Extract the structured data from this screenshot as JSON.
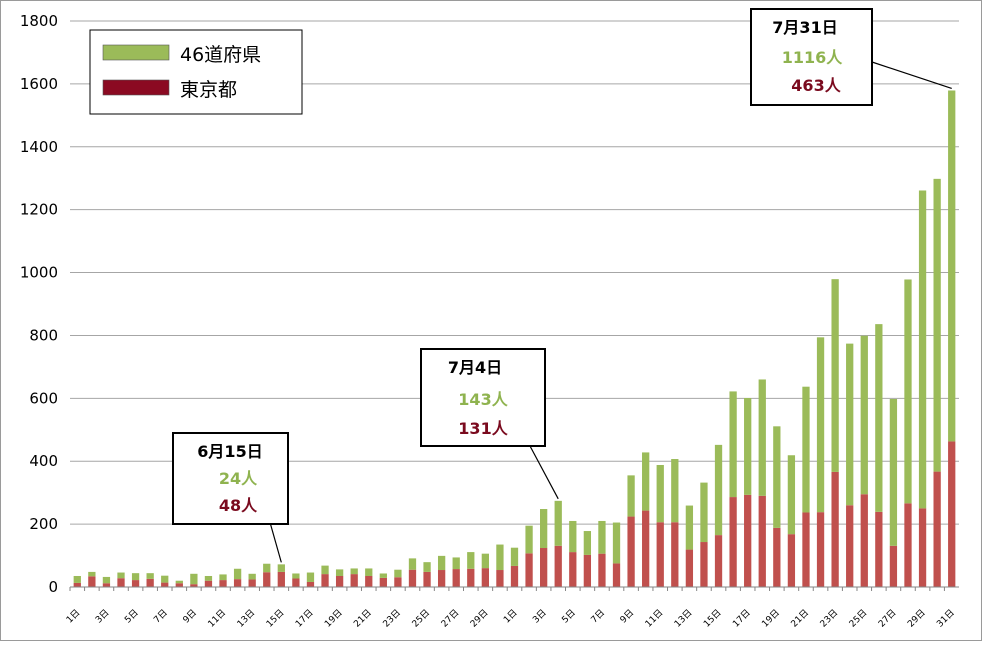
{
  "chart_data": {
    "type": "bar",
    "stacked": true,
    "ylim": [
      0,
      1800
    ],
    "yticks": [
      0,
      200,
      400,
      600,
      800,
      1000,
      1200,
      1400,
      1600,
      1800
    ],
    "grid": true,
    "legend_position": "top-left",
    "colors": {
      "prefectures": "#9bbb59",
      "tokyo": "#c0504d",
      "tokyo_legend": "#8b0a22"
    },
    "categories": [
      "1日",
      "2日",
      "3日",
      "4日",
      "5日",
      "6日",
      "7日",
      "8日",
      "9日",
      "10日",
      "11日",
      "12日",
      "13日",
      "14日",
      "15日",
      "16日",
      "17日",
      "18日",
      "19日",
      "20日",
      "21日",
      "22日",
      "23日",
      "24日",
      "25日",
      "26日",
      "27日",
      "28日",
      "29日",
      "30日",
      "1日",
      "2日",
      "3日",
      "4日",
      "5日",
      "6日",
      "7日",
      "8日",
      "9日",
      "10日",
      "11日",
      "12日",
      "13日",
      "14日",
      "15日",
      "16日",
      "17日",
      "18日",
      "19日",
      "20日",
      "21日",
      "22日",
      "23日",
      "24日",
      "25日",
      "26日",
      "27日",
      "28日",
      "29日",
      "30日",
      "31日"
    ],
    "series": [
      {
        "name": "東京都",
        "color": "#c0504d",
        "values": [
          13,
          34,
          12,
          28,
          22,
          26,
          14,
          12,
          9,
          20,
          22,
          25,
          24,
          47,
          48,
          27,
          16,
          41,
          35,
          41,
          35,
          29,
          31,
          55,
          48,
          54,
          57,
          58,
          60,
          54,
          67,
          107,
          124,
          131,
          111,
          102,
          106,
          75,
          224,
          243,
          206,
          206,
          119,
          143,
          165,
          286,
          293,
          290,
          188,
          168,
          237,
          238,
          366,
          260,
          295,
          239,
          131,
          266,
          250,
          367,
          463
        ]
      },
      {
        "name": "46道府県",
        "color": "#9bbb59",
        "values": [
          22,
          14,
          20,
          18,
          22,
          18,
          22,
          8,
          33,
          15,
          18,
          33,
          18,
          27,
          24,
          16,
          30,
          27,
          21,
          18,
          24,
          14,
          24,
          36,
          31,
          45,
          37,
          53,
          46,
          81,
          58,
          88,
          124,
          143,
          99,
          76,
          104,
          130,
          131,
          185,
          182,
          201,
          140,
          189,
          287,
          336,
          308,
          370,
          323,
          251,
          400,
          556,
          613,
          514,
          504,
          597,
          467,
          712,
          1011,
          931,
          1116
        ]
      }
    ],
    "annotations": [
      {
        "title": "6月15日",
        "green": "24人",
        "red": "48人",
        "index": 14
      },
      {
        "title": "7月4日",
        "green": "143人",
        "red": "131人",
        "index": 33
      },
      {
        "title": "7月31日",
        "green": "1116人",
        "red": "463人",
        "index": 60
      }
    ]
  },
  "legend": {
    "items": [
      {
        "label": "46道府県",
        "color": "#9bbb59"
      },
      {
        "label": "東京都",
        "color": "#8b0a22"
      }
    ]
  }
}
